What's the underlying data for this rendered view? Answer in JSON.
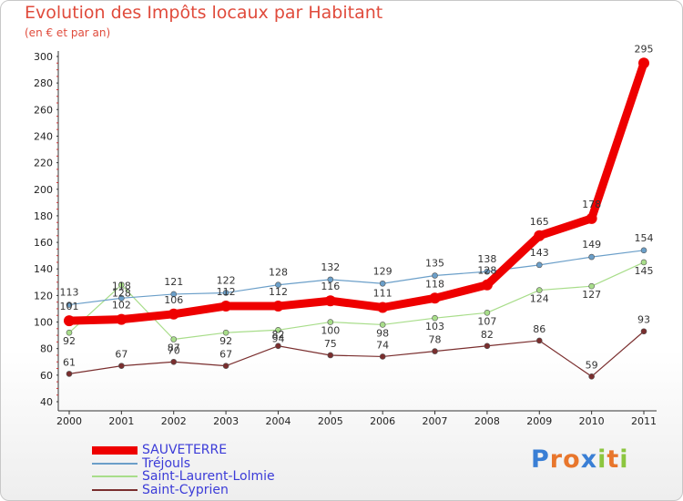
{
  "chart_data": {
    "type": "line",
    "title": "Evolution des Impôts locaux par Habitant",
    "subtitle": "(en € et par an)",
    "xlabel": "",
    "ylabel": "",
    "x": [
      "2000",
      "2001",
      "2002",
      "2003",
      "2004",
      "2005",
      "2006",
      "2007",
      "2008",
      "2009",
      "2010",
      "2011"
    ],
    "ylim": [
      40,
      300
    ],
    "yticks": [
      40,
      60,
      80,
      100,
      120,
      140,
      160,
      180,
      200,
      220,
      240,
      260,
      280,
      300
    ],
    "grid": false,
    "legend_position": "bottom-left",
    "series": [
      {
        "name": "SAUVETERRE",
        "color": "#ee0000",
        "values": [
          101,
          102,
          106,
          112,
          112,
          116,
          111,
          118,
          128,
          165,
          178,
          295
        ],
        "labels": [
          "101",
          "102",
          "106",
          "112",
          "112",
          "116",
          "111",
          "118",
          "128",
          "165",
          "178",
          "295"
        ]
      },
      {
        "name": "Tréjouls",
        "color": "#6b9fc9",
        "values": [
          113,
          118,
          121,
          122,
          128,
          132,
          129,
          135,
          138,
          143,
          149,
          154
        ],
        "labels": [
          "113",
          "118",
          "121",
          "122",
          "128",
          "132",
          "129",
          "135",
          "138",
          "143",
          "149",
          "154"
        ]
      },
      {
        "name": "Saint-Laurent-Lolmie",
        "color": "#a8dd8a",
        "values": [
          92,
          128,
          87,
          92,
          94,
          100,
          98,
          103,
          107,
          124,
          127,
          145
        ],
        "labels": [
          "92",
          "128",
          "87",
          "92",
          "94",
          "100",
          "98",
          "103",
          "107",
          "124",
          "127",
          "145"
        ]
      },
      {
        "name": "Saint-Cyprien",
        "color": "#7a2e2e",
        "values": [
          61,
          67,
          70,
          67,
          82,
          75,
          74,
          78,
          82,
          86,
          59,
          93
        ],
        "labels": [
          "61",
          "67",
          "70",
          "67",
          "82",
          "75",
          "74",
          "78",
          "82",
          "86",
          "59",
          "93"
        ]
      }
    ]
  },
  "logo": {
    "text": "Proxiti",
    "letters": [
      "P",
      "r",
      "o",
      "x",
      "i",
      "t",
      "i"
    ],
    "colors": [
      "#3a7fd5",
      "#e8762c",
      "#e8762c",
      "#3a7fd5",
      "#8cc63f",
      "#e8762c",
      "#8cc63f"
    ]
  }
}
